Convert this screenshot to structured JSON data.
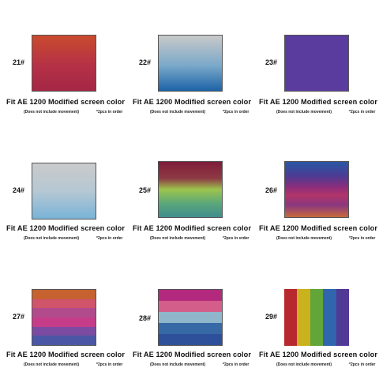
{
  "items": [
    {
      "number": "21#",
      "title": "Fit AE 1200 Modified screen color",
      "note": "(Does not include movement)",
      "pcs": "*2pcs in order",
      "colors": [
        "#c94b2e",
        "#b53147",
        "#a42745"
      ]
    },
    {
      "number": "22#",
      "title": "Fit AE 1200 Modified screen color",
      "note": "(Does not include movement)",
      "pcs": "*2pcs in order",
      "colors": [
        "#c9c9c9",
        "#79a8c9",
        "#1d63a8"
      ]
    },
    {
      "number": "23#",
      "title": "Fit AE 1200 Modified screen color",
      "note": "(Does not include movement)",
      "pcs": "*2pcs in order",
      "colors": [
        "#5a3c9e",
        "#5a3c9e"
      ]
    },
    {
      "number": "24#",
      "title": "Fit AE 1200 Modified screen color",
      "note": "(Does not include movement)",
      "pcs": "*2pcs in order",
      "colors": [
        "#cacaca",
        "#b6c8d4",
        "#79b3d6"
      ]
    },
    {
      "number": "25#",
      "title": "Fit AE 1200 Modified screen color",
      "note": "(Does not include movement)",
      "pcs": "*2pcs in order",
      "colors": [
        "#7e1c3a",
        "#8e3b44",
        "#9bc44c",
        "#5ba77a",
        "#3f8e8d"
      ]
    },
    {
      "number": "26#",
      "title": "Fit AE 1200 Modified screen color",
      "note": "(Does not include movement)",
      "pcs": "*2pcs in order",
      "colors": [
        "#2a58a4",
        "#4b3c94",
        "#8a2d7c",
        "#b03569",
        "#8b3780",
        "#c76a3b"
      ]
    },
    {
      "number": "27#",
      "title": "Fit AE 1200 Modified screen color",
      "note": "(Does not include movement)",
      "pcs": "*2pcs in order",
      "colors": [
        "#c5622f",
        "#d0546a",
        "#b24b8c",
        "#c53d88",
        "#7b4ba2",
        "#4b57a5"
      ]
    },
    {
      "number": "28#",
      "title": "Fit AE 1200 Modified screen color",
      "note": "(Does not include movement)",
      "pcs": "*2pcs in order",
      "colors": [
        "#b3297e",
        "#d45e8a",
        "#8fb6cb",
        "#3769a6",
        "#2e4f9a"
      ]
    },
    {
      "number": "29#",
      "title": "Fit AE 1200 Modified screen color",
      "note": "(Does not include movement)",
      "pcs": "*2pcs in order",
      "colors": [
        "#b7292e",
        "#c9b21d",
        "#62a63a",
        "#2f66ad",
        "#513996"
      ]
    }
  ]
}
